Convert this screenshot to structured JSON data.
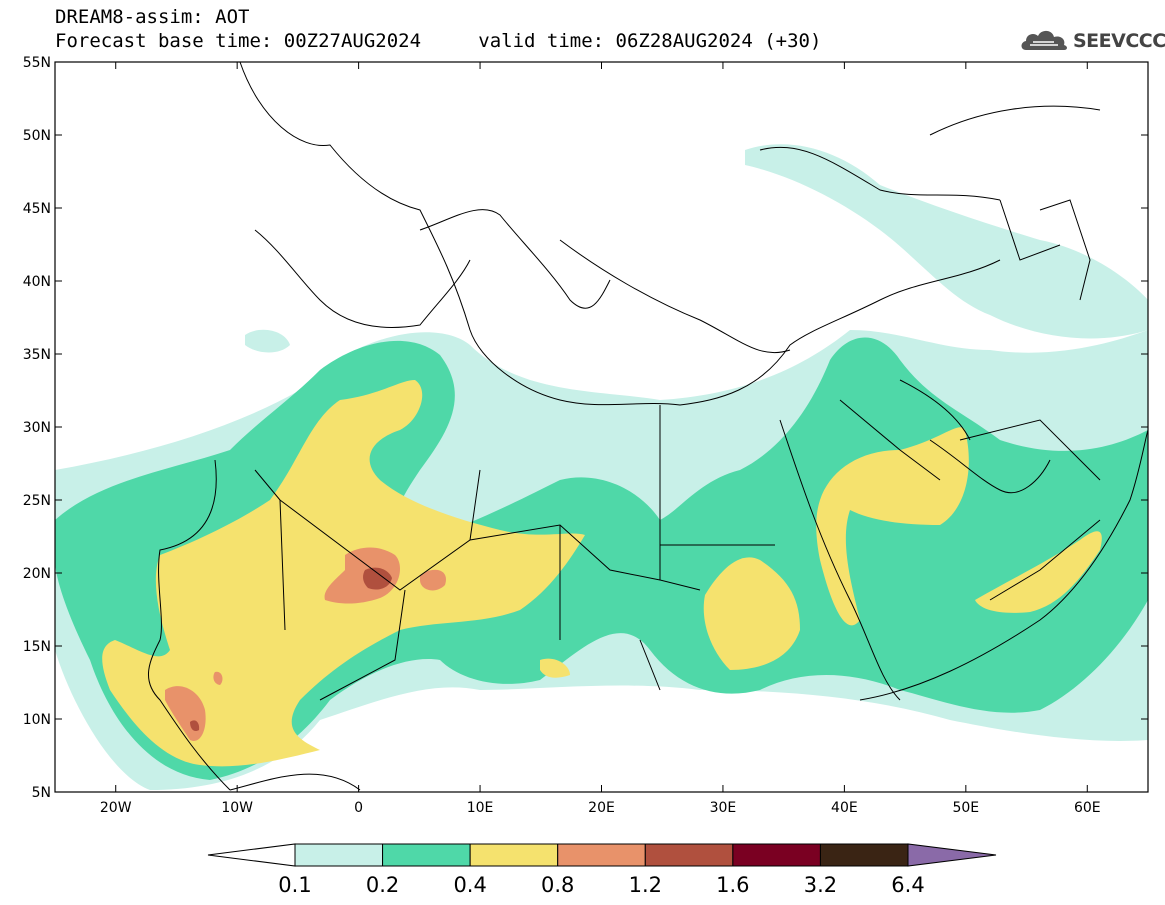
{
  "header": {
    "title": "DREAM8-assim: AOT",
    "base_time": "Forecast base time: 00Z27AUG2024",
    "valid_time": "valid time: 06Z28AUG2024 (+30)"
  },
  "logo": {
    "text": "SEEVCCC",
    "icon": "cloud-icon"
  },
  "map": {
    "lat_labels": [
      "55N",
      "50N",
      "45N",
      "40N",
      "35N",
      "30N",
      "25N",
      "20N",
      "15N",
      "10N",
      "5N"
    ],
    "lon_labels": [
      "20W",
      "10W",
      "0",
      "10E",
      "20E",
      "30E",
      "40E",
      "50E",
      "60E"
    ],
    "lat_values": [
      55,
      50,
      45,
      40,
      35,
      30,
      25,
      20,
      15,
      10,
      5
    ],
    "lon_values": [
      -20,
      -10,
      0,
      10,
      20,
      30,
      40,
      50,
      60
    ],
    "lon_range": [
      -25,
      65
    ],
    "lat_range": [
      5,
      55
    ]
  },
  "colorbar": {
    "labels": [
      "0.1",
      "0.2",
      "0.4",
      "0.8",
      "1.2",
      "1.6",
      "3.2",
      "6.4"
    ],
    "colors": [
      "#ffffff",
      "#c8f0e8",
      "#4fd8a8",
      "#f5e26e",
      "#e8926a",
      "#b0503e",
      "#7a0022",
      "#3a2414",
      "#8a6aa8"
    ]
  }
}
